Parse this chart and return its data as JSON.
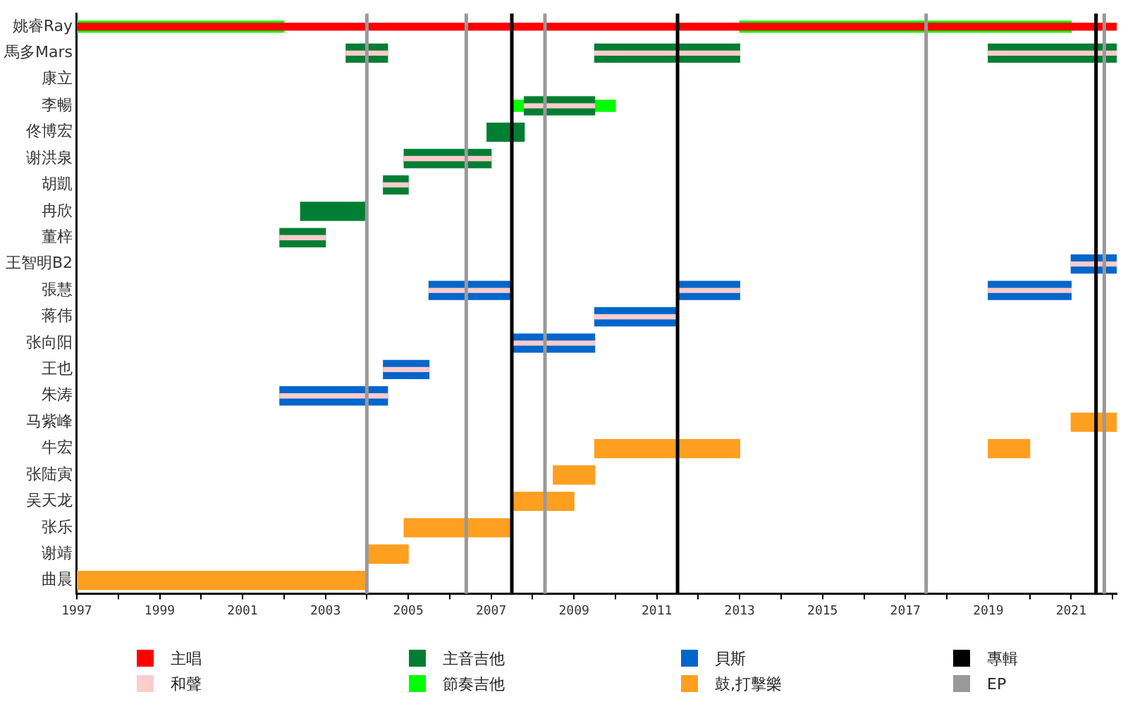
{
  "chart_data": {
    "type": "bar",
    "orientation": "horizontal",
    "categories": [
      "姚睿Ray",
      "馬多Mars",
      "康立",
      "李暢",
      "佟博宏",
      "谢洪泉",
      "胡凱",
      "冉欣",
      "董梓",
      "王智明B2",
      "張慧",
      "蒋伟",
      "张向阳",
      "王也",
      "朱涛",
      "马紫峰",
      "牛宏",
      "张陆寅",
      "吴天龙",
      "张乐",
      "谢靖",
      "曲晨"
    ],
    "series": [
      {
        "name": "主唱",
        "color": "#ff0000",
        "base": [
          1997,
          null,
          null,
          null,
          null,
          null,
          null,
          null,
          null,
          null,
          null,
          null,
          null,
          null,
          null,
          null,
          null,
          null,
          null,
          null,
          null,
          null
        ],
        "values": [
          25.1,
          null,
          null,
          null,
          null,
          null,
          null,
          null,
          null,
          null,
          null,
          null,
          null,
          null,
          null,
          null,
          null,
          null,
          null,
          null,
          null,
          null
        ]
      },
      {
        "name": "和聲",
        "color": "#ffcccc",
        "base": [
          null,
          2003.5,
          null,
          2007.8,
          null,
          2004.9,
          2004.4,
          null,
          2001.9,
          2021,
          2005.5,
          2009.5,
          2007.5,
          2004.4,
          2001.9,
          null,
          null,
          null,
          null,
          null,
          null,
          null
        ],
        "values": [
          null,
          1,
          null,
          1.7,
          null,
          2.1,
          0.6,
          null,
          1.1,
          1.1,
          2,
          2,
          2,
          1.1,
          2.6,
          null,
          null,
          null,
          null,
          null,
          null,
          null
        ]
      },
      {
        "color": "#ffcccc",
        "base": [
          null,
          2009.5,
          null,
          null,
          null,
          null,
          null,
          null,
          null,
          null,
          2011.5,
          null,
          null,
          null,
          null,
          null,
          null,
          null,
          null,
          null,
          null,
          null
        ],
        "values": [
          null,
          3.5,
          null,
          null,
          null,
          null,
          null,
          null,
          null,
          null,
          1.5,
          null,
          null,
          null,
          null,
          null,
          null,
          null,
          null,
          null,
          null,
          null
        ]
      },
      {
        "color": "#ffcccc",
        "base": [
          null,
          2019,
          null,
          null,
          null,
          null,
          null,
          null,
          null,
          null,
          2019,
          null,
          null,
          null,
          null,
          null,
          null,
          null,
          null,
          null,
          null,
          null
        ],
        "values": [
          null,
          3.1,
          null,
          null,
          null,
          null,
          null,
          null,
          null,
          null,
          2,
          null,
          null,
          null,
          null,
          null,
          null,
          null,
          null,
          null,
          null,
          null
        ]
      },
      {
        "name": "主音吉他",
        "color": "#007e33",
        "base": [
          null,
          2003.5,
          null,
          2007.8,
          2006.9,
          2004.9,
          2004.4,
          2002.4,
          2001.9,
          null,
          null,
          null,
          null,
          null,
          null,
          null,
          null,
          null,
          null,
          null,
          null,
          null
        ],
        "values": [
          null,
          1,
          null,
          1.7,
          0.9,
          2.1,
          0.6,
          1.6,
          1.1,
          null,
          null,
          null,
          null,
          null,
          null,
          null,
          null,
          null,
          null,
          null,
          null,
          null
        ]
      },
      {
        "color": "#007e33",
        "base": [
          null,
          2009.5,
          null,
          null,
          null,
          null,
          null,
          null,
          null,
          null,
          null,
          null,
          null,
          null,
          null,
          null,
          null,
          null,
          null,
          null,
          null,
          null
        ],
        "values": [
          null,
          3.5,
          null,
          null,
          null,
          null,
          null,
          null,
          null,
          null,
          null,
          null,
          null,
          null,
          null,
          null,
          null,
          null,
          null,
          null,
          null,
          null
        ]
      },
      {
        "color": "#007e33",
        "base": [
          null,
          2019,
          null,
          null,
          null,
          null,
          null,
          null,
          null,
          null,
          null,
          null,
          null,
          null,
          null,
          null,
          null,
          null,
          null,
          null,
          null,
          null
        ],
        "values": [
          null,
          3.1,
          null,
          null,
          null,
          null,
          null,
          null,
          null,
          null,
          null,
          null,
          null,
          null,
          null,
          null,
          null,
          null,
          null,
          null,
          null,
          null
        ]
      },
      {
        "name": "節奏吉他",
        "color": "#00ff00",
        "base": [
          1997,
          null,
          null,
          2007.5,
          null,
          null,
          null,
          null,
          null,
          null,
          null,
          null,
          null,
          null,
          null,
          null,
          null,
          null,
          null,
          null,
          null,
          null
        ],
        "values": [
          5,
          null,
          null,
          2.5,
          null,
          null,
          null,
          null,
          null,
          null,
          null,
          null,
          null,
          null,
          null,
          null,
          null,
          null,
          null,
          null,
          null,
          null
        ]
      },
      {
        "color": "#00ff00",
        "base": [
          2013,
          null,
          null,
          null,
          null,
          null,
          null,
          null,
          null,
          null,
          null,
          null,
          null,
          null,
          null,
          null,
          null,
          null,
          null,
          null,
          null,
          null
        ],
        "values": [
          8,
          null,
          null,
          null,
          null,
          null,
          null,
          null,
          null,
          null,
          null,
          null,
          null,
          null,
          null,
          null,
          null,
          null,
          null,
          null,
          null,
          null
        ]
      },
      {
        "name": "貝斯",
        "color": "#0066cc",
        "base": [
          null,
          null,
          null,
          null,
          null,
          null,
          null,
          null,
          null,
          2021,
          2005.5,
          2009.5,
          2007.5,
          2004.4,
          2001.9,
          null,
          null,
          null,
          null,
          null,
          null,
          null
        ],
        "values": [
          null,
          null,
          null,
          null,
          null,
          null,
          null,
          null,
          null,
          1.1,
          2,
          2,
          2,
          1.1,
          2.6,
          null,
          null,
          null,
          null,
          null,
          null,
          null
        ]
      },
      {
        "color": "#0066cc",
        "base": [
          null,
          null,
          null,
          null,
          null,
          null,
          null,
          null,
          null,
          null,
          2011.5,
          null,
          null,
          null,
          null,
          null,
          null,
          null,
          null,
          null,
          null,
          null
        ],
        "values": [
          null,
          null,
          null,
          null,
          null,
          null,
          null,
          null,
          null,
          null,
          1.5,
          null,
          null,
          null,
          null,
          null,
          null,
          null,
          null,
          null,
          null,
          null
        ]
      },
      {
        "color": "#0066cc",
        "base": [
          null,
          null,
          null,
          null,
          null,
          null,
          null,
          null,
          null,
          null,
          2019,
          null,
          null,
          null,
          null,
          null,
          null,
          null,
          null,
          null,
          null,
          null
        ],
        "values": [
          null,
          null,
          null,
          null,
          null,
          null,
          null,
          null,
          null,
          null,
          2,
          null,
          null,
          null,
          null,
          null,
          null,
          null,
          null,
          null,
          null,
          null
        ]
      },
      {
        "name": "鼓,打擊樂",
        "color": "#ff9f1f",
        "base": [
          null,
          null,
          null,
          null,
          null,
          null,
          null,
          null,
          null,
          null,
          null,
          null,
          null,
          null,
          null,
          2021,
          2009.5,
          2008.5,
          2007.5,
          2004.9,
          2004,
          1997
        ],
        "values": [
          null,
          null,
          null,
          null,
          null,
          null,
          null,
          null,
          null,
          null,
          null,
          null,
          null,
          null,
          null,
          1.1,
          3.5,
          1,
          1.5,
          2.6,
          1,
          7
        ]
      },
      {
        "color": "#ff9f1f",
        "base": [
          null,
          null,
          null,
          null,
          null,
          null,
          null,
          null,
          null,
          null,
          null,
          null,
          null,
          null,
          null,
          null,
          2019,
          null,
          null,
          null,
          null,
          null
        ],
        "values": [
          null,
          null,
          null,
          null,
          null,
          null,
          null,
          null,
          null,
          null,
          null,
          null,
          null,
          null,
          null,
          null,
          1,
          null,
          null,
          null,
          null,
          null
        ]
      }
    ],
    "xlim": [
      1997,
      2022.1
    ],
    "xticks": [
      1997,
      {
        "value": 1998,
        "label": null
      },
      1999,
      {
        "value": 2000,
        "label": null
      },
      2001,
      {
        "value": 2002,
        "label": null
      },
      2003,
      {
        "value": 2004,
        "label": null
      },
      2005,
      {
        "value": 2006,
        "label": null
      },
      2007,
      {
        "value": 2008,
        "label": null
      },
      2009,
      {
        "value": 2010,
        "label": null
      },
      2011,
      {
        "value": 2012,
        "label": null
      },
      2013,
      {
        "value": 2014,
        "label": null
      },
      2015,
      {
        "value": 2016,
        "label": null
      },
      2017,
      {
        "value": 2018,
        "label": null
      },
      2019,
      {
        "value": 2020,
        "label": null
      },
      2021,
      {
        "value": 2022,
        "label": null
      }
    ],
    "ref_lines": [
      {
        "axis": "x",
        "value": 2007.5,
        "label": "專輯",
        "color": "#000000"
      },
      {
        "axis": "x",
        "value": 2011.5,
        "color": "#000000"
      },
      {
        "axis": "x",
        "value": 2021.6,
        "color": "#000000"
      },
      {
        "axis": "x",
        "value": 2004,
        "label": "EP",
        "color": "#999999"
      },
      {
        "axis": "x",
        "value": 2006.4,
        "color": "#999999"
      },
      {
        "axis": "x",
        "value": 2008.3,
        "color": "#999999"
      },
      {
        "axis": "x",
        "value": 2017.5,
        "color": "#999999"
      },
      {
        "axis": "x",
        "value": 2021.8,
        "color": "#999999"
      }
    ],
    "legend": "bottom"
  }
}
